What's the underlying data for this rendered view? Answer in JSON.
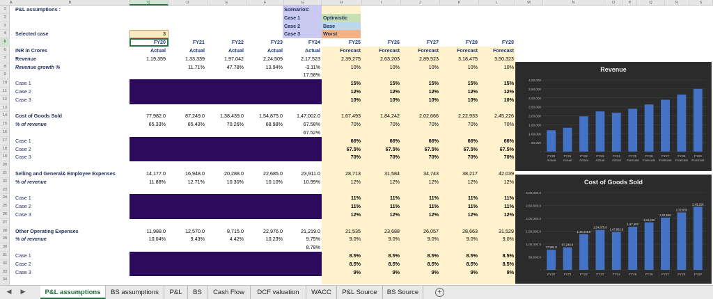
{
  "tabs": {
    "active": "P&L assumptions",
    "items": [
      "BS assumptions",
      "P&L",
      "BS",
      "Cash Flow",
      "DCF valuation",
      "WACC",
      "P&L Source",
      "BS Source"
    ]
  },
  "colors": {
    "scenario_bg": "#c9c9f2",
    "optimistic": "#c6e0b4",
    "base": "#bdd7ee",
    "worst": "#f4b183",
    "forecast_bg": "#fff2cc",
    "selected_case_bg": "#fde9c2",
    "purple_block": "#2d0b5c",
    "chart_bg": "#2b2b2b",
    "bar": "#4472c4",
    "selected_column": "#217346"
  },
  "header_columns": [
    "A",
    "B",
    "C",
    "D",
    "E",
    "F",
    "G",
    "H",
    "I",
    "J",
    "K",
    "L",
    "M",
    "N",
    "O",
    "P",
    "Q",
    "R",
    "S"
  ],
  "row_numbers": [
    "1",
    "2",
    "3",
    "4",
    "5",
    "6",
    "7",
    "8",
    "9",
    "10",
    "11",
    "12",
    "13",
    "14",
    "15",
    "16",
    "17",
    "18",
    "19",
    "20",
    "21",
    "22",
    "23",
    "24",
    "25",
    "26",
    "27",
    "28",
    "29",
    "30",
    "31",
    "32",
    "33",
    "34"
  ],
  "sheet": {
    "title": "P&L assumptions :",
    "selected_case_label": "Selected case",
    "selected_case_value": "3",
    "scenarios_label": "Scenarios:",
    "cases": [
      "Case 1",
      "Case 2",
      "Case 3"
    ],
    "case_names": [
      "Optimistic",
      "Base",
      "Worst"
    ],
    "unit_label": "INR in Crores",
    "years": [
      "FY20",
      "FY21",
      "FY22",
      "FY23",
      "FY24",
      "FY25",
      "FY26",
      "FY27",
      "FY28",
      "FY29"
    ],
    "types": [
      "Actual",
      "Actual",
      "Actual",
      "Actual",
      "Actual",
      "Forecast",
      "Forecast",
      "Forecast",
      "Forecast",
      "Forecast"
    ],
    "revenue_label": "Revenue",
    "revenue": [
      "1,19,359",
      "1,33,339",
      "1,97,042",
      "2,24,509",
      "2,17,523",
      "2,39,275",
      "2,63,203",
      "2,89,523",
      "3,18,475",
      "3,50,323"
    ],
    "rev_growth_label": "Revenue growth %",
    "rev_growth": [
      "",
      "11.71%",
      "47.78%",
      "13.94%",
      "-3.11%",
      "10%",
      "10%",
      "10%",
      "10%",
      "10%"
    ],
    "rev_growth_avg": "17.58%",
    "rev_cases": [
      [
        "15%",
        "15%",
        "15%",
        "15%",
        "15%"
      ],
      [
        "12%",
        "12%",
        "12%",
        "12%",
        "12%"
      ],
      [
        "10%",
        "10%",
        "10%",
        "10%",
        "10%"
      ]
    ],
    "cogs_label": "Cost of Goods Sold",
    "cogs": [
      "77,982.0",
      "87,249.0",
      "1,38,439.0",
      "1,54,875.0",
      "1,47,002.0",
      "1,67,493",
      "1,84,242",
      "2,02,666",
      "2,22,933",
      "2,45,226"
    ],
    "cogs_pct_label": "% of revenue",
    "cogs_pct": [
      "65.33%",
      "65.43%",
      "70.26%",
      "68.98%",
      "67.58%",
      "70%",
      "70%",
      "70%",
      "70%",
      "70%"
    ],
    "cogs_avg": "67.52%",
    "cogs_cases": [
      [
        "66%",
        "66%",
        "66%",
        "66%",
        "66%"
      ],
      [
        "67.5%",
        "67.5%",
        "67.5%",
        "67.5%",
        "67.5%"
      ],
      [
        "70%",
        "70%",
        "70%",
        "70%",
        "70%"
      ]
    ],
    "sga_label": "Selling and General& Employee Expenses",
    "sga": [
      "14,177.0",
      "16,948.0",
      "20,288.0",
      "22,685.0",
      "23,911.0",
      "28,713",
      "31,584",
      "34,743",
      "38,217",
      "42,039"
    ],
    "sga_pct_label": "% of revenue",
    "sga_pct": [
      "11.88%",
      "12.71%",
      "10.30%",
      "10.10%",
      "10.99%",
      "12%",
      "12%",
      "12%",
      "12%",
      "12%"
    ],
    "sga_cases": [
      [
        "11%",
        "11%",
        "11%",
        "11%",
        "11%"
      ],
      [
        "11%",
        "11%",
        "11%",
        "11%",
        "11%"
      ],
      [
        "12%",
        "12%",
        "12%",
        "12%",
        "12%"
      ]
    ],
    "ooe_label": "Other Operating Expenses",
    "ooe": [
      "11,988.0",
      "12,570.0",
      "8,715.0",
      "22,976.0",
      "21,219.0",
      "21,535",
      "23,688",
      "26,057",
      "28,663",
      "31,529"
    ],
    "ooe_pct_label": "% of revenue",
    "ooe_pct": [
      "10.04%",
      "9.43%",
      "4.42%",
      "10.23%",
      "9.75%",
      "9.0%",
      "9.0%",
      "9.0%",
      "9.0%",
      "9.0%"
    ],
    "ooe_avg": "8.78%",
    "ooe_cases": [
      [
        "8.5%",
        "8.5%",
        "8.5%",
        "8.5%",
        "8.5%"
      ],
      [
        "8.5%",
        "8.5%",
        "8.5%",
        "8.5%",
        "8.5%"
      ],
      [
        "9%",
        "9%",
        "9%",
        "9%",
        "9%"
      ]
    ]
  },
  "chart_data": [
    {
      "type": "bar",
      "title": "Revenue",
      "categories": [
        "FY20 Actual",
        "FY21 Actual",
        "FY22 Actual",
        "FY23 Actual",
        "FY24 Actual",
        "FY25 Forecast",
        "FY26 Forecast",
        "FY27 Forecast",
        "FY28 Forecast",
        "FY29 Forecast"
      ],
      "values": [
        119359,
        133339,
        197042,
        224509,
        217523,
        239275,
        263203,
        289523,
        318475,
        350323
      ],
      "ylim": [
        0,
        400000
      ],
      "yticks": [
        "4,00,000",
        "3,50,000",
        "3,00,000",
        "2,50,000",
        "2,00,000",
        "1,50,000",
        "1,00,000",
        "50,000",
        "-"
      ],
      "data_labels": [],
      "grid": true,
      "legend": "none",
      "color": "#4472c4"
    },
    {
      "type": "bar",
      "title": "Cost of Goods Sold",
      "categories": [
        "FY20",
        "FY21",
        "FY22",
        "FY23",
        "FY24",
        "FY25",
        "FY26",
        "FY27",
        "FY28",
        "FY29"
      ],
      "values": [
        77982,
        87249,
        138439,
        154875,
        147002,
        167493,
        184242,
        202666,
        222933,
        245226
      ],
      "ylim": [
        0,
        300000
      ],
      "yticks": [
        "3,00,000.0",
        "2,50,000.0",
        "2,00,000.0",
        "1,50,000.0",
        "1,00,000.0",
        "50,000.0",
        "-"
      ],
      "data_labels": [
        "77,982.0",
        "87,249.0",
        "1,38,439.0",
        "1,54,875.0",
        "1,47,002.0",
        "1,67,493",
        "1,84,242",
        "2,02,666",
        "2,22,933",
        "2,45,226"
      ],
      "grid": true,
      "legend": "none",
      "color": "#4472c4"
    }
  ]
}
